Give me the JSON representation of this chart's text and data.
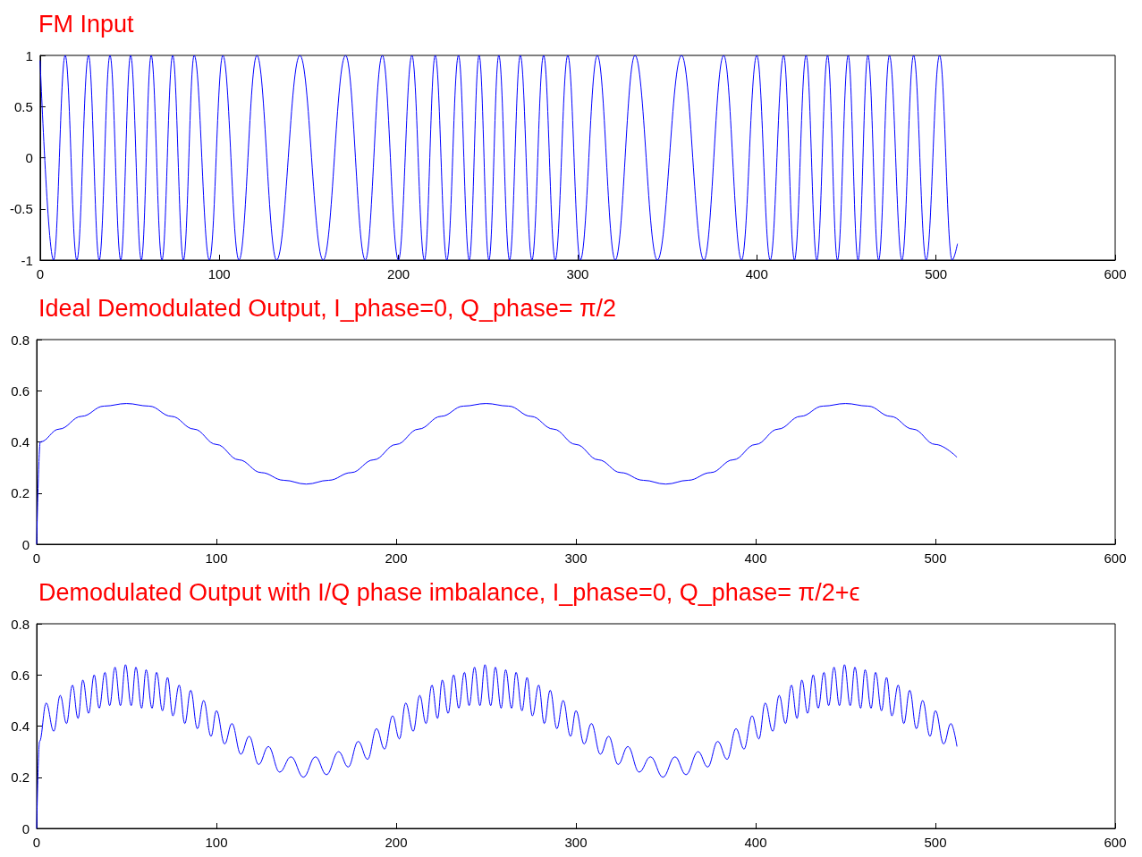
{
  "chart_data": [
    {
      "type": "line",
      "title": "FM Input",
      "color": "#0000ff",
      "xlim": [
        0,
        600
      ],
      "xticks": [
        0,
        100,
        200,
        300,
        400,
        500,
        600
      ],
      "ylim": [
        -1,
        1
      ],
      "yticks": [
        -1,
        -0.5,
        0,
        0.5,
        1
      ],
      "grid": false,
      "x": [
        0,
        7.5,
        14,
        20.5,
        27,
        33,
        39,
        45,
        50.5,
        56.5,
        62,
        68,
        74,
        80,
        86,
        94.5,
        102,
        111,
        121,
        132,
        145,
        158,
        170.5,
        181.5,
        191,
        200,
        207.5,
        214.5,
        220.5,
        227,
        233.5,
        239.5,
        245,
        250.5,
        256,
        262,
        268,
        274.5,
        281,
        287.5,
        294.5,
        301.5,
        311,
        321,
        332,
        344.5,
        358,
        370.5,
        381.5,
        391.5,
        400,
        407.5,
        415,
        421,
        427.5,
        433.5,
        439.5,
        445,
        451,
        456.5,
        462,
        468,
        474,
        481,
        487.5,
        494.5,
        502,
        509,
        512
      ],
      "values": [
        0.95,
        -1,
        1,
        -1,
        1,
        -1,
        1,
        -1,
        1,
        -1,
        1,
        -1,
        1,
        -1,
        1,
        -1,
        1,
        -1,
        1,
        -1,
        1,
        -1,
        1,
        -1,
        1,
        -1,
        1,
        -1,
        1,
        -1,
        1,
        -1,
        1,
        -1,
        1,
        -1,
        1,
        -1,
        1,
        -1,
        1,
        -1,
        1,
        -1,
        1,
        -1,
        1,
        -1,
        1,
        -1,
        1,
        -1,
        1,
        -1,
        1,
        -1,
        1,
        -1,
        1,
        -1,
        1,
        -1,
        1,
        -1,
        1,
        -1,
        1,
        -1,
        -0.84
      ]
    },
    {
      "type": "line",
      "title": "Ideal Demodulated Output, I_phase=0, Q_phase= π/2",
      "color": "#0000ff",
      "xlim": [
        0,
        600
      ],
      "xticks": [
        0,
        100,
        200,
        300,
        400,
        500,
        600
      ],
      "ylim": [
        0,
        0.8
      ],
      "yticks": [
        0,
        0.2,
        0.4,
        0.6,
        0.8
      ],
      "grid": false,
      "x": [
        0,
        2,
        12.5,
        25,
        37.5,
        50,
        62.5,
        75,
        87.5,
        100,
        112.5,
        125,
        137.5,
        150,
        162.5,
        175,
        187.5,
        200,
        212.5,
        225,
        237.5,
        250,
        262.5,
        275,
        287.5,
        300,
        312.5,
        325,
        337.5,
        350,
        362.5,
        375,
        387.5,
        400,
        412.5,
        425,
        437.5,
        450,
        462.5,
        475,
        487.5,
        500,
        512
      ],
      "values": [
        0,
        0.4,
        0.45,
        0.5,
        0.54,
        0.55,
        0.54,
        0.5,
        0.45,
        0.39,
        0.33,
        0.28,
        0.25,
        0.235,
        0.25,
        0.28,
        0.33,
        0.39,
        0.45,
        0.5,
        0.54,
        0.55,
        0.54,
        0.5,
        0.45,
        0.39,
        0.33,
        0.28,
        0.25,
        0.235,
        0.25,
        0.28,
        0.33,
        0.39,
        0.45,
        0.5,
        0.54,
        0.55,
        0.54,
        0.5,
        0.45,
        0.39,
        0.34
      ]
    },
    {
      "type": "line",
      "title": "Demodulated Output with I/Q phase imbalance, I_phase=0, Q_phase= π/2+ϵ",
      "color": "#0000ff",
      "xlim": [
        0,
        600
      ],
      "xticks": [
        0,
        100,
        200,
        300,
        400,
        500,
        600
      ],
      "ylim": [
        0,
        0.8
      ],
      "yticks": [
        0,
        0.2,
        0.4,
        0.6,
        0.8
      ],
      "grid": false,
      "x": [
        0,
        1.6,
        5.3,
        9.5,
        13.1,
        16.6,
        19.9,
        23,
        25.7,
        28.9,
        32,
        34.8,
        38,
        40.6,
        43.6,
        46.6,
        49.4,
        52.6,
        55.2,
        58.4,
        60.9,
        64.2,
        66.7,
        70,
        72.8,
        75.8,
        79.3,
        82.4,
        85.7,
        89.4,
        92.9,
        97,
        100,
        104.6,
        108.6,
        113.6,
        118.2,
        123.5,
        128.9,
        135.2,
        141.5,
        148.4,
        155.1,
        161.2,
        168,
        173.3,
        178.9,
        184.1,
        189.1,
        193.5,
        198,
        201.8,
        205.3,
        209.5,
        213.1,
        216.6,
        219.9,
        223,
        225.7,
        228.9,
        232,
        234.8,
        238,
        240.6,
        243.6,
        246.6,
        249.4,
        252.6,
        255.2,
        258.4,
        260.9,
        264.2,
        266.7,
        270,
        272.8,
        275.8,
        279.3,
        282.4,
        285.7,
        289.4,
        292.9,
        297,
        300,
        304.6,
        308.6,
        313.6,
        318.2,
        323.5,
        328.9,
        335.2,
        341.5,
        348.4,
        355.1,
        361.2,
        368,
        373.3,
        378.9,
        384.1,
        389.1,
        393.5,
        398,
        401.8,
        405.3,
        409.5,
        413.1,
        416.6,
        419.9,
        423,
        425.7,
        428.9,
        432,
        434.8,
        438,
        440.6,
        443.6,
        446.6,
        449.4,
        452.6,
        455.2,
        458.4,
        460.9,
        464.2,
        466.7,
        470,
        472.8,
        475.8,
        479.3,
        482.4,
        485.7,
        489.4,
        492.9,
        497,
        500,
        504.6,
        508.6,
        512
      ],
      "values": [
        0,
        0.34,
        0.49,
        0.38,
        0.52,
        0.41,
        0.56,
        0.43,
        0.58,
        0.45,
        0.6,
        0.47,
        0.61,
        0.48,
        0.63,
        0.48,
        0.64,
        0.48,
        0.63,
        0.47,
        0.62,
        0.47,
        0.61,
        0.46,
        0.59,
        0.44,
        0.56,
        0.41,
        0.54,
        0.39,
        0.5,
        0.36,
        0.46,
        0.33,
        0.41,
        0.29,
        0.36,
        0.25,
        0.32,
        0.22,
        0.28,
        0.2,
        0.28,
        0.21,
        0.3,
        0.24,
        0.34,
        0.27,
        0.39,
        0.31,
        0.44,
        0.35,
        0.49,
        0.38,
        0.52,
        0.41,
        0.56,
        0.43,
        0.58,
        0.45,
        0.6,
        0.47,
        0.61,
        0.48,
        0.63,
        0.48,
        0.64,
        0.48,
        0.63,
        0.47,
        0.62,
        0.47,
        0.61,
        0.46,
        0.59,
        0.44,
        0.56,
        0.41,
        0.54,
        0.39,
        0.5,
        0.36,
        0.46,
        0.33,
        0.41,
        0.29,
        0.36,
        0.25,
        0.32,
        0.22,
        0.28,
        0.2,
        0.28,
        0.21,
        0.3,
        0.24,
        0.34,
        0.27,
        0.39,
        0.31,
        0.44,
        0.35,
        0.49,
        0.38,
        0.52,
        0.41,
        0.56,
        0.43,
        0.58,
        0.45,
        0.6,
        0.47,
        0.61,
        0.48,
        0.63,
        0.48,
        0.64,
        0.48,
        0.63,
        0.47,
        0.62,
        0.47,
        0.61,
        0.46,
        0.59,
        0.44,
        0.56,
        0.41,
        0.54,
        0.39,
        0.5,
        0.36,
        0.46,
        0.33,
        0.41,
        0.32
      ]
    }
  ]
}
